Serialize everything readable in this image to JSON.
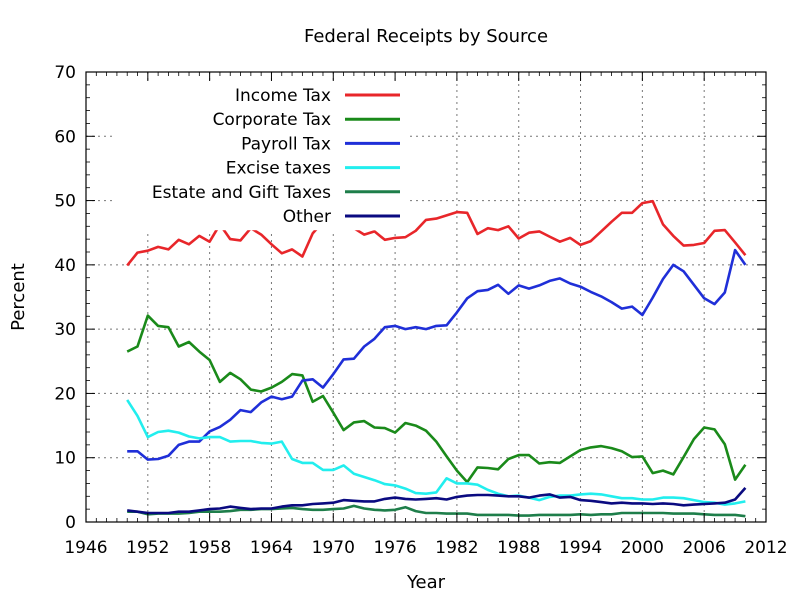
{
  "chart_data": {
    "type": "line",
    "title": "Federal Receipts by Source",
    "xlabel": "Year",
    "ylabel": "Percent",
    "xlim": [
      1946,
      2012
    ],
    "ylim": [
      0,
      70
    ],
    "xticks": [
      1946,
      1952,
      1958,
      1964,
      1970,
      1976,
      1982,
      1988,
      1994,
      2000,
      2006,
      2012
    ],
    "yticks": [
      0,
      10,
      20,
      30,
      40,
      50,
      60,
      70
    ],
    "grid": true,
    "legend_position": "top-left",
    "x": [
      1950,
      1951,
      1952,
      1953,
      1954,
      1955,
      1956,
      1957,
      1958,
      1959,
      1960,
      1961,
      1962,
      1963,
      1964,
      1965,
      1966,
      1967,
      1968,
      1969,
      1970,
      1971,
      1972,
      1973,
      1974,
      1975,
      1976,
      1977,
      1978,
      1979,
      1980,
      1981,
      1982,
      1983,
      1984,
      1985,
      1986,
      1987,
      1988,
      1989,
      1990,
      1991,
      1992,
      1993,
      1994,
      1995,
      1996,
      1997,
      1998,
      1999,
      2000,
      2001,
      2002,
      2003,
      2004,
      2005,
      2006,
      2007,
      2008,
      2009,
      2010
    ],
    "series": [
      {
        "name": "Income Tax",
        "color": "#e8262a",
        "values": [
          39.9,
          41.9,
          42.2,
          42.8,
          42.4,
          43.9,
          43.2,
          44.5,
          43.6,
          46.3,
          44.0,
          43.8,
          45.7,
          44.7,
          43.2,
          41.8,
          42.4,
          41.3,
          44.9,
          46.7,
          46.9,
          46.1,
          45.7,
          44.7,
          45.2,
          43.9,
          44.2,
          44.3,
          45.3,
          47.0,
          47.2,
          47.7,
          48.2,
          48.1,
          44.8,
          45.7,
          45.4,
          46.0,
          44.1,
          45.0,
          45.2,
          44.4,
          43.6,
          44.2,
          43.1,
          43.7,
          45.2,
          46.7,
          48.1,
          48.1,
          49.6,
          49.9,
          46.3,
          44.5,
          43.0,
          43.1,
          43.4,
          45.3,
          45.4,
          43.5,
          41.5
        ]
      },
      {
        "name": "Corporate Tax",
        "color": "#1a8a1a",
        "values": [
          26.5,
          27.3,
          32.1,
          30.5,
          30.3,
          27.3,
          28.0,
          26.5,
          25.2,
          21.8,
          23.2,
          22.2,
          20.6,
          20.3,
          20.9,
          21.8,
          23.0,
          22.8,
          18.7,
          19.6,
          17.0,
          14.3,
          15.5,
          15.7,
          14.7,
          14.6,
          13.9,
          15.4,
          15.0,
          14.2,
          12.5,
          10.2,
          8.0,
          6.2,
          8.5,
          8.4,
          8.2,
          9.8,
          10.4,
          10.4,
          9.1,
          9.3,
          9.2,
          10.2,
          11.2,
          11.6,
          11.8,
          11.5,
          11.0,
          10.1,
          10.2,
          7.6,
          8.0,
          7.4,
          10.1,
          12.9,
          14.7,
          14.4,
          12.1,
          6.6,
          8.9
        ]
      },
      {
        "name": "Payroll Tax",
        "color": "#1f2fd8",
        "values": [
          11.0,
          11.0,
          9.7,
          9.8,
          10.3,
          12.0,
          12.5,
          12.5,
          14.1,
          14.8,
          15.9,
          17.4,
          17.1,
          18.6,
          19.5,
          19.1,
          19.5,
          22.0,
          22.2,
          20.9,
          23.0,
          25.3,
          25.4,
          27.3,
          28.5,
          30.3,
          30.5,
          30.0,
          30.3,
          30.0,
          30.5,
          30.6,
          32.6,
          34.8,
          35.9,
          36.1,
          36.9,
          35.5,
          36.8,
          36.3,
          36.8,
          37.5,
          37.9,
          37.1,
          36.6,
          35.8,
          35.1,
          34.2,
          33.2,
          33.5,
          32.2,
          34.9,
          37.8,
          40.0,
          39.0,
          36.9,
          34.8,
          33.9,
          35.7,
          42.3,
          40.0
        ]
      },
      {
        "name": "Excise taxes",
        "color": "#22eeee",
        "values": [
          19.0,
          16.5,
          13.2,
          14.0,
          14.2,
          13.9,
          13.3,
          13.0,
          13.2,
          13.2,
          12.5,
          12.6,
          12.6,
          12.3,
          12.2,
          12.5,
          9.8,
          9.2,
          9.2,
          8.1,
          8.1,
          8.8,
          7.5,
          7.0,
          6.5,
          5.9,
          5.7,
          5.2,
          4.5,
          4.4,
          4.6,
          6.8,
          6.0,
          6.0,
          5.8,
          5.0,
          4.4,
          4.0,
          4.1,
          3.8,
          3.4,
          3.9,
          4.1,
          4.1,
          4.3,
          4.4,
          4.3,
          4.0,
          3.7,
          3.7,
          3.5,
          3.5,
          3.8,
          3.8,
          3.7,
          3.4,
          3.1,
          3.0,
          2.7,
          2.9,
          3.2
        ]
      },
      {
        "name": "Estate and Gift Taxes",
        "color": "#1e7e4a",
        "values": [
          1.6,
          1.6,
          1.2,
          1.3,
          1.3,
          1.3,
          1.4,
          1.6,
          1.6,
          1.6,
          1.7,
          1.9,
          1.9,
          2.0,
          2.0,
          2.1,
          2.2,
          2.0,
          1.9,
          1.9,
          2.0,
          2.1,
          2.5,
          2.1,
          1.9,
          1.8,
          1.9,
          2.3,
          1.7,
          1.4,
          1.4,
          1.3,
          1.3,
          1.3,
          1.1,
          1.1,
          1.1,
          1.1,
          1.0,
          1.0,
          1.1,
          1.1,
          1.1,
          1.1,
          1.2,
          1.1,
          1.2,
          1.2,
          1.4,
          1.4,
          1.4,
          1.4,
          1.4,
          1.3,
          1.3,
          1.3,
          1.2,
          1.1,
          1.1,
          1.1,
          0.9
        ]
      },
      {
        "name": "Other",
        "color": "#0a0a80",
        "values": [
          1.8,
          1.6,
          1.4,
          1.4,
          1.4,
          1.6,
          1.6,
          1.8,
          2.0,
          2.1,
          2.4,
          2.2,
          2.0,
          2.1,
          2.1,
          2.4,
          2.6,
          2.6,
          2.8,
          2.9,
          3.0,
          3.4,
          3.3,
          3.2,
          3.2,
          3.6,
          3.8,
          3.6,
          3.5,
          3.6,
          3.7,
          3.5,
          3.9,
          4.1,
          4.2,
          4.2,
          4.1,
          4.0,
          4.0,
          3.8,
          4.1,
          4.3,
          3.8,
          3.9,
          3.4,
          3.3,
          3.1,
          2.9,
          3.0,
          2.9,
          2.9,
          2.8,
          2.9,
          2.8,
          2.6,
          2.7,
          2.8,
          2.9,
          3.0,
          3.5,
          5.3
        ]
      }
    ]
  }
}
